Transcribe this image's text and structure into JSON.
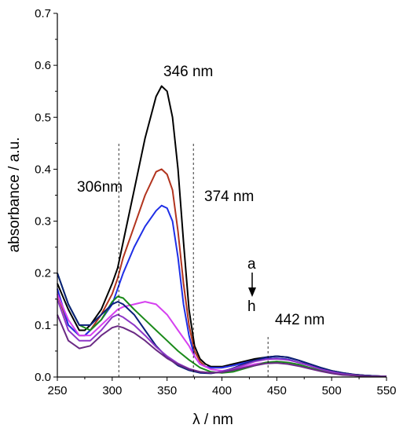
{
  "chart_data": {
    "type": "line",
    "xlabel": "λ / nm",
    "ylabel": "absorbance / a.u.",
    "xlim": [
      250,
      550
    ],
    "ylim": [
      0.0,
      0.7
    ],
    "x_ticks": [
      250,
      300,
      350,
      400,
      450,
      500,
      550
    ],
    "y_ticks": [
      0.0,
      0.1,
      0.2,
      0.3,
      0.4,
      0.5,
      0.6,
      0.7
    ],
    "grid": false,
    "annotations": {
      "peak_346": "346 nm",
      "peak_306": "306nm",
      "peak_374": "374 nm",
      "peak_442": "442 nm",
      "arrow_top": "a",
      "arrow_bottom": "h"
    },
    "marker_lines": [
      {
        "x": 306,
        "y_from": 0.0,
        "y_to": 0.45
      },
      {
        "x": 374,
        "y_from": 0.0,
        "y_to": 0.45
      },
      {
        "x": 442,
        "y_from": 0.0,
        "y_to": 0.08
      }
    ],
    "colors": {
      "a": "#000000",
      "b": "#b2341e",
      "c": "#1f2fe6",
      "d": "#d641f0",
      "e": "#1a8a1a",
      "f": "#0b1f7a",
      "g": "#8e36c8",
      "h": "#6a2a84"
    },
    "series": [
      {
        "id": "a",
        "x": [
          250,
          260,
          270,
          275,
          280,
          290,
          300,
          305,
          310,
          320,
          330,
          340,
          345,
          350,
          355,
          360,
          365,
          370,
          375,
          380,
          385,
          390,
          400,
          410,
          420,
          430,
          440,
          450,
          460,
          470,
          480,
          490,
          500,
          510,
          520,
          530,
          540,
          550
        ],
        "y": [
          0.18,
          0.13,
          0.09,
          0.09,
          0.1,
          0.13,
          0.18,
          0.21,
          0.26,
          0.36,
          0.46,
          0.54,
          0.56,
          0.55,
          0.5,
          0.4,
          0.26,
          0.13,
          0.06,
          0.035,
          0.025,
          0.02,
          0.02,
          0.025,
          0.03,
          0.035,
          0.038,
          0.04,
          0.038,
          0.032,
          0.025,
          0.018,
          0.012,
          0.008,
          0.005,
          0.003,
          0.002,
          0.001
        ]
      },
      {
        "id": "b",
        "x": [
          250,
          260,
          270,
          275,
          280,
          290,
          300,
          305,
          310,
          320,
          330,
          340,
          345,
          350,
          355,
          360,
          365,
          370,
          375,
          380,
          385,
          390,
          400,
          410,
          420,
          430,
          440,
          450,
          460,
          470,
          480,
          490,
          500,
          510,
          520,
          530,
          540,
          550
        ],
        "y": [
          0.16,
          0.1,
          0.08,
          0.08,
          0.09,
          0.12,
          0.16,
          0.19,
          0.23,
          0.29,
          0.35,
          0.395,
          0.4,
          0.39,
          0.36,
          0.28,
          0.18,
          0.1,
          0.05,
          0.03,
          0.02,
          0.018,
          0.018,
          0.022,
          0.027,
          0.032,
          0.035,
          0.036,
          0.034,
          0.028,
          0.022,
          0.015,
          0.01,
          0.006,
          0.004,
          0.003,
          0.002,
          0.001
        ]
      },
      {
        "id": "c",
        "x": [
          250,
          260,
          270,
          275,
          280,
          290,
          300,
          305,
          310,
          320,
          330,
          340,
          345,
          350,
          355,
          360,
          365,
          370,
          375,
          380,
          385,
          390,
          400,
          410,
          420,
          430,
          440,
          450,
          460,
          470,
          480,
          490,
          500,
          510,
          520,
          530,
          540,
          550
        ],
        "y": [
          0.17,
          0.1,
          0.08,
          0.08,
          0.09,
          0.11,
          0.14,
          0.17,
          0.2,
          0.25,
          0.29,
          0.32,
          0.33,
          0.325,
          0.3,
          0.23,
          0.14,
          0.08,
          0.04,
          0.025,
          0.02,
          0.018,
          0.018,
          0.022,
          0.027,
          0.032,
          0.035,
          0.036,
          0.034,
          0.028,
          0.022,
          0.015,
          0.01,
          0.006,
          0.004,
          0.003,
          0.002,
          0.001
        ]
      },
      {
        "id": "d",
        "x": [
          250,
          260,
          270,
          280,
          290,
          300,
          305,
          310,
          320,
          330,
          340,
          350,
          360,
          370,
          375,
          380,
          390,
          400,
          410,
          420,
          430,
          440,
          450,
          460,
          470,
          480,
          490,
          500,
          510,
          520,
          530,
          540,
          550
        ],
        "y": [
          0.16,
          0.11,
          0.08,
          0.08,
          0.1,
          0.12,
          0.13,
          0.135,
          0.14,
          0.145,
          0.14,
          0.12,
          0.09,
          0.06,
          0.04,
          0.025,
          0.015,
          0.012,
          0.015,
          0.02,
          0.025,
          0.028,
          0.03,
          0.028,
          0.024,
          0.018,
          0.012,
          0.008,
          0.005,
          0.003,
          0.002,
          0.001,
          0.001
        ]
      },
      {
        "id": "e",
        "x": [
          250,
          260,
          270,
          280,
          290,
          300,
          305,
          310,
          320,
          330,
          340,
          350,
          360,
          370,
          380,
          390,
          400,
          410,
          420,
          430,
          440,
          450,
          460,
          470,
          480,
          490,
          500,
          510,
          520,
          530,
          540,
          550
        ],
        "y": [
          0.2,
          0.14,
          0.1,
          0.09,
          0.11,
          0.145,
          0.155,
          0.152,
          0.13,
          0.11,
          0.09,
          0.07,
          0.05,
          0.033,
          0.018,
          0.01,
          0.008,
          0.01,
          0.016,
          0.022,
          0.028,
          0.03,
          0.028,
          0.024,
          0.018,
          0.012,
          0.008,
          0.005,
          0.003,
          0.002,
          0.001,
          0.001
        ]
      },
      {
        "id": "f",
        "x": [
          250,
          260,
          270,
          280,
          290,
          300,
          305,
          310,
          320,
          330,
          340,
          350,
          360,
          370,
          380,
          390,
          400,
          410,
          420,
          430,
          440,
          450,
          460,
          470,
          480,
          490,
          500,
          510,
          520,
          530,
          540,
          550
        ],
        "y": [
          0.2,
          0.14,
          0.1,
          0.1,
          0.12,
          0.14,
          0.145,
          0.14,
          0.12,
          0.09,
          0.06,
          0.038,
          0.022,
          0.013,
          0.008,
          0.007,
          0.01,
          0.017,
          0.025,
          0.032,
          0.038,
          0.04,
          0.038,
          0.032,
          0.025,
          0.018,
          0.012,
          0.008,
          0.005,
          0.003,
          0.002,
          0.001
        ]
      },
      {
        "id": "g",
        "x": [
          250,
          260,
          270,
          280,
          290,
          300,
          305,
          310,
          320,
          330,
          340,
          350,
          360,
          370,
          380,
          390,
          400,
          410,
          420,
          430,
          440,
          450,
          460,
          470,
          480,
          490,
          500,
          510,
          520,
          530,
          540,
          550
        ],
        "y": [
          0.15,
          0.09,
          0.07,
          0.07,
          0.09,
          0.115,
          0.12,
          0.115,
          0.1,
          0.08,
          0.058,
          0.04,
          0.026,
          0.016,
          0.01,
          0.008,
          0.01,
          0.016,
          0.023,
          0.03,
          0.034,
          0.035,
          0.033,
          0.028,
          0.022,
          0.015,
          0.01,
          0.006,
          0.004,
          0.002,
          0.001,
          0.001
        ]
      },
      {
        "id": "h",
        "x": [
          250,
          260,
          270,
          280,
          290,
          300,
          305,
          310,
          320,
          330,
          340,
          350,
          360,
          370,
          380,
          390,
          400,
          410,
          420,
          430,
          440,
          450,
          460,
          470,
          480,
          490,
          500,
          510,
          520,
          530,
          540,
          550
        ],
        "y": [
          0.12,
          0.07,
          0.055,
          0.06,
          0.08,
          0.095,
          0.098,
          0.095,
          0.085,
          0.07,
          0.052,
          0.036,
          0.024,
          0.015,
          0.01,
          0.008,
          0.009,
          0.013,
          0.018,
          0.022,
          0.026,
          0.027,
          0.025,
          0.021,
          0.016,
          0.011,
          0.007,
          0.004,
          0.003,
          0.002,
          0.001,
          0.001
        ]
      }
    ]
  }
}
